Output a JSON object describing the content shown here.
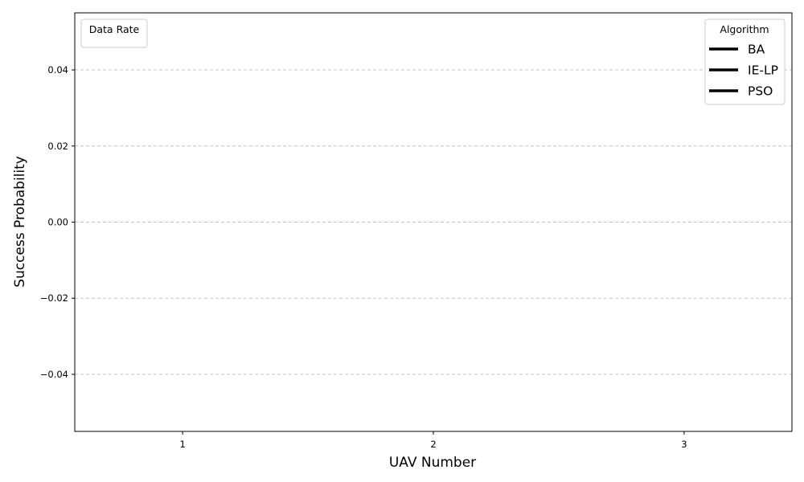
{
  "chart_data": {
    "type": "line",
    "title": "",
    "xlabel": "UAV Number",
    "ylabel": "Success Probability",
    "x": [
      1,
      2,
      3
    ],
    "x_tick_labels": [
      "1",
      "2",
      "3"
    ],
    "xlim": [
      0.57,
      3.43
    ],
    "ylim": [
      -0.055,
      0.055
    ],
    "y_ticks": [
      -0.04,
      -0.02,
      0.0,
      0.02,
      0.04
    ],
    "y_tick_labels": [
      "−0.04",
      "−0.02",
      "0.00",
      "0.02",
      "0.04"
    ],
    "grid": "y-dashed",
    "series": [],
    "legend_data_rate": {
      "title": "Data Rate",
      "placement": "top-left",
      "entries": []
    },
    "legend_algorithm": {
      "title": "Algorithm",
      "placement": "top-right",
      "entries": [
        {
          "label": "BA",
          "color": "#000000"
        },
        {
          "label": "IE-LP",
          "color": "#000000"
        },
        {
          "label": "PSO",
          "color": "#000000"
        }
      ]
    }
  }
}
